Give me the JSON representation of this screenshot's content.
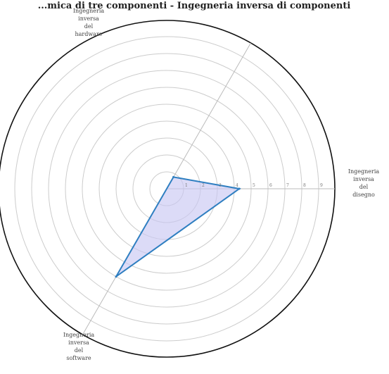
{
  "chart_data": {
    "type": "radar",
    "title": "...mica di tre componenti - Ingegneria inversa di componenti",
    "axes": [
      {
        "label_lines": [
          "Ingegneria",
          "inversa",
          "del",
          "hardware"
        ],
        "angle_deg": -60
      },
      {
        "label_lines": [
          "Ingegneria",
          "inversa",
          "del",
          "disegno"
        ],
        "angle_deg": 0
      },
      {
        "label_lines": [
          "Ingegneria",
          "inversa",
          "del",
          "software"
        ],
        "angle_deg": 120
      }
    ],
    "rmax": 10,
    "rings": [
      1,
      2,
      3,
      4,
      5,
      6,
      7,
      8,
      9
    ],
    "tick_labels": [
      "1",
      "2",
      "3",
      "4",
      "5",
      "6",
      "7",
      "8",
      "9"
    ],
    "grid": true,
    "series": [
      {
        "values": [
          0.8,
          4.3,
          6.0
        ],
        "line_color": "#2f7fc1",
        "fill_color": "#c9c8f2"
      }
    ],
    "outer_color": "#111111",
    "grid_color": "#cccccc",
    "spoke_color": "#bbbbbb"
  }
}
